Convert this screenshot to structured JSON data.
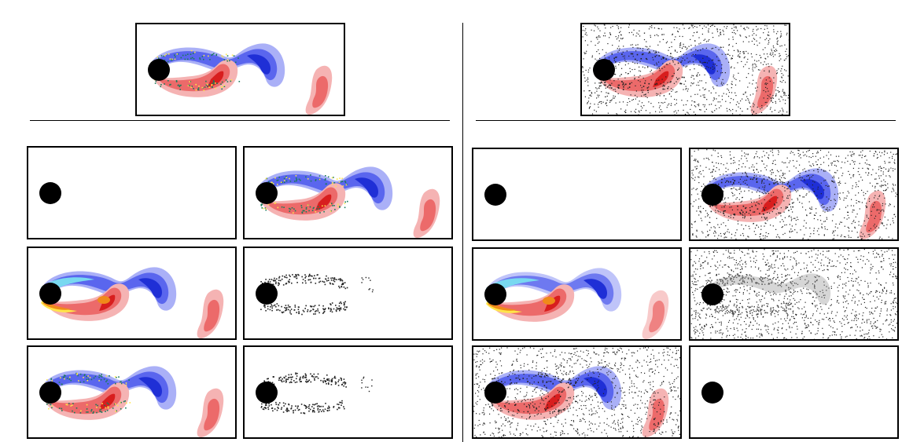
{
  "figure": {
    "left": {
      "reference": "wake",
      "grid": [
        [
          "empty",
          "wake"
        ],
        [
          "wake-bright",
          "particles"
        ],
        [
          "wake",
          "particles"
        ]
      ]
    },
    "right": {
      "reference": "wake-noisy",
      "grid": [
        [
          "empty",
          "wake-noisy"
        ],
        [
          "wake-bright-diffuse",
          "noisy-gray"
        ],
        [
          "wake-noisy",
          "empty"
        ]
      ]
    }
  },
  "colors": {
    "blue_dark": "#1f2fd6",
    "blue_mid": "#5a66ee",
    "blue_light": "#aab0f7",
    "red_dark": "#d81e1e",
    "red_mid": "#ec6a6a",
    "red_light": "#f5b3b3",
    "yellow": "#ffe54a",
    "orange": "#f08a1a",
    "cyan": "#78d8f0",
    "particle": "#222222",
    "cylinder": "#000000"
  }
}
